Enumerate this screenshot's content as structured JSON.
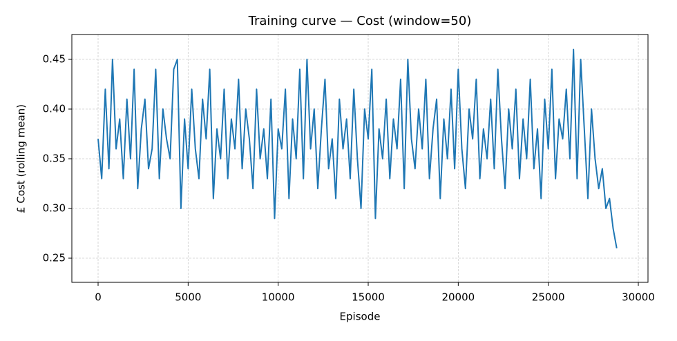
{
  "chart_data": {
    "type": "line",
    "title": "Training curve — Cost (window=50)",
    "x_label": "Episode",
    "y_label": "£ Cost (rolling mean)",
    "x": [
      0,
      200,
      400,
      600,
      800,
      1000,
      1200,
      1400,
      1600,
      1800,
      2000,
      2200,
      2400,
      2600,
      2800,
      3000,
      3200,
      3400,
      3600,
      3800,
      4000,
      4200,
      4400,
      4600,
      4800,
      5000,
      5200,
      5400,
      5600,
      5800,
      6000,
      6200,
      6400,
      6600,
      6800,
      7000,
      7200,
      7400,
      7600,
      7800,
      8000,
      8200,
      8400,
      8600,
      8800,
      9000,
      9200,
      9400,
      9600,
      9800,
      10000,
      10200,
      10400,
      10600,
      10800,
      11000,
      11200,
      11400,
      11600,
      11800,
      12000,
      12200,
      12400,
      12600,
      12800,
      13000,
      13200,
      13400,
      13600,
      13800,
      14000,
      14200,
      14400,
      14600,
      14800,
      15000,
      15200,
      15400,
      15600,
      15800,
      16000,
      16200,
      16400,
      16600,
      16800,
      17000,
      17200,
      17400,
      17600,
      17800,
      18000,
      18200,
      18400,
      18600,
      18800,
      19000,
      19200,
      19400,
      19600,
      19800,
      20000,
      20200,
      20400,
      20600,
      20800,
      21000,
      21200,
      21400,
      21600,
      21800,
      22000,
      22200,
      22400,
      22600,
      22800,
      23000,
      23200,
      23400,
      23600,
      23800,
      24000,
      24200,
      24400,
      24600,
      24800,
      25000,
      25200,
      25400,
      25600,
      25800,
      26000,
      26200,
      26400,
      26600,
      26800,
      27000,
      27200,
      27400,
      27600,
      27800,
      28000,
      28200,
      28400,
      28600,
      28800
    ],
    "series": [
      {
        "name": "Cost",
        "color": "#1f77b4",
        "values": [
          0.37,
          0.33,
          0.42,
          0.34,
          0.45,
          0.36,
          0.39,
          0.33,
          0.41,
          0.35,
          0.44,
          0.32,
          0.38,
          0.41,
          0.34,
          0.36,
          0.44,
          0.33,
          0.4,
          0.37,
          0.35,
          0.44,
          0.45,
          0.3,
          0.39,
          0.34,
          0.42,
          0.36,
          0.33,
          0.41,
          0.37,
          0.44,
          0.31,
          0.38,
          0.35,
          0.42,
          0.33,
          0.39,
          0.36,
          0.43,
          0.34,
          0.4,
          0.37,
          0.32,
          0.42,
          0.35,
          0.38,
          0.33,
          0.41,
          0.29,
          0.38,
          0.36,
          0.42,
          0.31,
          0.39,
          0.35,
          0.44,
          0.33,
          0.45,
          0.36,
          0.4,
          0.32,
          0.38,
          0.43,
          0.34,
          0.37,
          0.31,
          0.41,
          0.36,
          0.39,
          0.33,
          0.42,
          0.35,
          0.3,
          0.4,
          0.37,
          0.44,
          0.29,
          0.38,
          0.35,
          0.41,
          0.33,
          0.39,
          0.36,
          0.43,
          0.32,
          0.45,
          0.37,
          0.34,
          0.4,
          0.36,
          0.43,
          0.33,
          0.38,
          0.41,
          0.31,
          0.39,
          0.35,
          0.42,
          0.34,
          0.44,
          0.36,
          0.32,
          0.4,
          0.37,
          0.43,
          0.33,
          0.38,
          0.35,
          0.41,
          0.34,
          0.44,
          0.37,
          0.32,
          0.4,
          0.36,
          0.42,
          0.33,
          0.39,
          0.35,
          0.43,
          0.34,
          0.38,
          0.31,
          0.41,
          0.36,
          0.44,
          0.33,
          0.39,
          0.37,
          0.42,
          0.35,
          0.46,
          0.33,
          0.45,
          0.38,
          0.31,
          0.4,
          0.35,
          0.32,
          0.34,
          0.3,
          0.31,
          0.28,
          0.26
        ]
      }
    ],
    "xlim": [
      -1458,
      30537
    ],
    "ylim": [
      0.2257,
      0.475
    ],
    "xticks": [
      0,
      5000,
      10000,
      15000,
      20000,
      25000,
      30000
    ],
    "yticks": [
      0.25,
      {
        "value": 0.3,
        "label": "0.30"
      },
      0.35,
      {
        "value": 0.4,
        "label": "0.40"
      },
      0.45
    ],
    "grid": true
  }
}
